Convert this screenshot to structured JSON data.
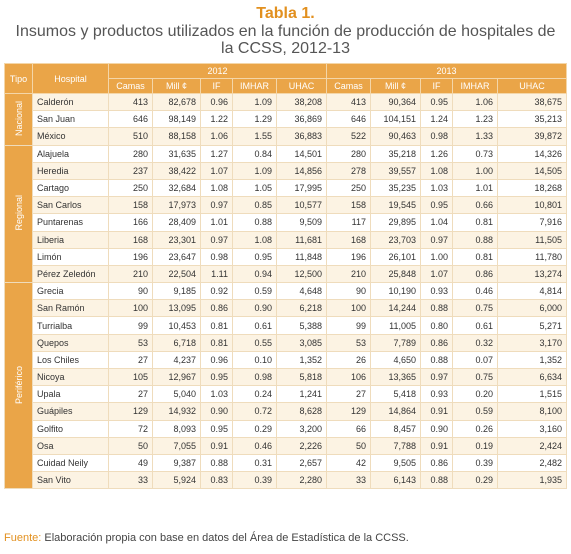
{
  "header": {
    "title": "Tabla 1.",
    "subtitle": "Insumos y productos utilizados en la función de producción de hospitales de la CCSS, 2012-13"
  },
  "table": {
    "head": {
      "tipo": "Tipo",
      "hospital": "Hospital",
      "years": [
        "2012",
        "2013"
      ],
      "columns": [
        "Camas",
        "Mill ¢",
        "IF",
        "IMHAR",
        "UHAC"
      ]
    },
    "groups": [
      {
        "label": "Nacional",
        "rows": [
          [
            "Calderón",
            "413",
            "82,678",
            "0.96",
            "1.09",
            "38,208",
            "413",
            "90,364",
            "0.95",
            "1.06",
            "38,675"
          ],
          [
            "San Juan",
            "646",
            "98,149",
            "1.22",
            "1.29",
            "36,869",
            "646",
            "104,151",
            "1.24",
            "1.23",
            "35,213"
          ],
          [
            "México",
            "510",
            "88,158",
            "1.06",
            "1.55",
            "36,883",
            "522",
            "90,463",
            "0.98",
            "1.33",
            "39,872"
          ]
        ]
      },
      {
        "label": "Regional",
        "rows": [
          [
            "Alajuela",
            "280",
            "31,635",
            "1.27",
            "0.84",
            "14,501",
            "280",
            "35,218",
            "1.26",
            "0.73",
            "14,326"
          ],
          [
            "Heredia",
            "237",
            "38,422",
            "1.07",
            "1.09",
            "14,856",
            "278",
            "39,557",
            "1.08",
            "1.00",
            "14,505"
          ],
          [
            "Cartago",
            "250",
            "32,684",
            "1.08",
            "1.05",
            "17,995",
            "250",
            "35,235",
            "1.03",
            "1.01",
            "18,268"
          ],
          [
            "San Carlos",
            "158",
            "17,973",
            "0.97",
            "0.85",
            "10,577",
            "158",
            "19,545",
            "0.95",
            "0.66",
            "10,801"
          ],
          [
            "Puntarenas",
            "166",
            "28,409",
            "1.01",
            "0.88",
            "9,509",
            "117",
            "29,895",
            "1.04",
            "0.81",
            "7,916"
          ],
          [
            "Liberia",
            "168",
            "23,301",
            "0.97",
            "1.08",
            "11,681",
            "168",
            "23,703",
            "0.97",
            "0.88",
            "11,505"
          ],
          [
            "Limón",
            "196",
            "23,647",
            "0.98",
            "0.95",
            "11,848",
            "196",
            "26,101",
            "1.00",
            "0.81",
            "11,780"
          ],
          [
            "Pérez Zeledón",
            "210",
            "22,504",
            "1.11",
            "0.94",
            "12,500",
            "210",
            "25,848",
            "1.07",
            "0.86",
            "13,274"
          ]
        ]
      },
      {
        "label": "Periférico",
        "rows": [
          [
            "Grecia",
            "90",
            "9,185",
            "0.92",
            "0.59",
            "4,648",
            "90",
            "10,190",
            "0.93",
            "0.46",
            "4,814"
          ],
          [
            "San Ramón",
            "100",
            "13,095",
            "0.86",
            "0.90",
            "6,218",
            "100",
            "14,244",
            "0.88",
            "0.75",
            "6,000"
          ],
          [
            "Turrialba",
            "99",
            "10,453",
            "0.81",
            "0.61",
            "5,388",
            "99",
            "11,005",
            "0.80",
            "0.61",
            "5,271"
          ],
          [
            "Quepos",
            "53",
            "6,718",
            "0.81",
            "0.55",
            "3,085",
            "53",
            "7,789",
            "0.86",
            "0.32",
            "3,170"
          ],
          [
            "Los Chiles",
            "27",
            "4,237",
            "0.96",
            "0.10",
            "1,352",
            "26",
            "4,650",
            "0.88",
            "0.07",
            "1,352"
          ],
          [
            "Nicoya",
            "105",
            "12,967",
            "0.95",
            "0.98",
            "5,818",
            "106",
            "13,365",
            "0.97",
            "0.75",
            "6,634"
          ],
          [
            "Upala",
            "27",
            "5,040",
            "1.03",
            "0.24",
            "1,241",
            "27",
            "5,418",
            "0.93",
            "0.20",
            "1,515"
          ],
          [
            "Guápiles",
            "129",
            "14,932",
            "0.90",
            "0.72",
            "8,628",
            "129",
            "14,864",
            "0.91",
            "0.59",
            "8,100"
          ],
          [
            "Golfito",
            "72",
            "8,093",
            "0.95",
            "0.29",
            "3,200",
            "66",
            "8,457",
            "0.90",
            "0.26",
            "3,160"
          ],
          [
            "Osa",
            "50",
            "7,055",
            "0.91",
            "0.46",
            "2,226",
            "50",
            "7,788",
            "0.91",
            "0.19",
            "2,424"
          ],
          [
            "Cuidad Neily",
            "49",
            "9,387",
            "0.88",
            "0.31",
            "2,657",
            "42",
            "9,505",
            "0.86",
            "0.39",
            "2,482"
          ],
          [
            "San Vito",
            "33",
            "5,924",
            "0.83",
            "0.39",
            "2,280",
            "33",
            "6,143",
            "0.88",
            "0.29",
            "1,935"
          ]
        ]
      }
    ]
  },
  "source": {
    "label": "Fuente:",
    "text": "Elaboración propia con base en datos del Área de Estadística de la CCSS."
  }
}
